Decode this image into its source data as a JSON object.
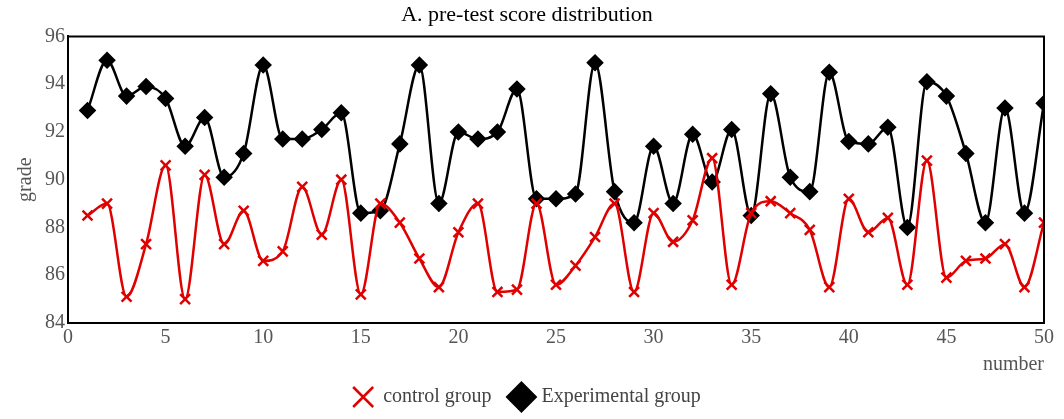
{
  "chart_data": {
    "type": "line",
    "title": "A. pre-test score distribution",
    "xlabel": "number",
    "ylabel": "grade",
    "x": [
      1,
      2,
      3,
      4,
      5,
      6,
      7,
      8,
      9,
      10,
      11,
      12,
      13,
      14,
      15,
      16,
      17,
      18,
      19,
      20,
      21,
      22,
      23,
      24,
      25,
      26,
      27,
      28,
      29,
      30,
      31,
      32,
      33,
      34,
      35,
      36,
      37,
      38,
      39,
      40,
      41,
      42,
      43,
      44,
      45,
      46,
      47,
      48,
      49,
      50
    ],
    "series": [
      {
        "name": "Experimental group",
        "color": "#000000",
        "marker": "diamond",
        "values": [
          92.9,
          95.0,
          93.5,
          93.9,
          93.4,
          91.4,
          92.6,
          90.1,
          91.1,
          94.8,
          91.7,
          91.7,
          92.1,
          92.8,
          88.6,
          88.7,
          91.5,
          94.8,
          89.0,
          92.0,
          91.7,
          92.0,
          93.8,
          89.2,
          89.2,
          89.4,
          94.9,
          89.5,
          88.2,
          91.4,
          89.0,
          91.9,
          89.9,
          92.1,
          88.5,
          93.6,
          90.1,
          89.5,
          94.5,
          91.6,
          91.5,
          92.2,
          88.0,
          94.1,
          93.5,
          91.1,
          88.2,
          93.0,
          88.6,
          93.2
        ]
      },
      {
        "name": "control group",
        "color": "#e00000",
        "marker": "cross",
        "values": [
          88.5,
          89.0,
          85.1,
          87.3,
          90.6,
          85.0,
          90.2,
          87.3,
          88.7,
          86.6,
          87.0,
          89.7,
          87.7,
          90.0,
          85.2,
          89.0,
          88.2,
          86.7,
          85.5,
          87.8,
          89.0,
          85.3,
          85.4,
          89.0,
          85.6,
          86.4,
          87.6,
          89.0,
          85.3,
          88.6,
          87.4,
          88.3,
          90.9,
          85.6,
          88.6,
          89.1,
          88.6,
          87.9,
          85.5,
          89.2,
          87.8,
          88.4,
          85.6,
          90.8,
          85.9,
          86.6,
          86.7,
          87.3,
          85.5,
          88.2
        ]
      }
    ],
    "xlim": [
      0,
      50
    ],
    "xticks": [
      0,
      5,
      10,
      15,
      20,
      25,
      30,
      35,
      40,
      45,
      50
    ],
    "ylim": [
      84,
      96
    ],
    "yticks": [
      84,
      86,
      88,
      90,
      92,
      94,
      96
    ],
    "grid": false,
    "legend": "bottom",
    "line_style": "solid"
  }
}
